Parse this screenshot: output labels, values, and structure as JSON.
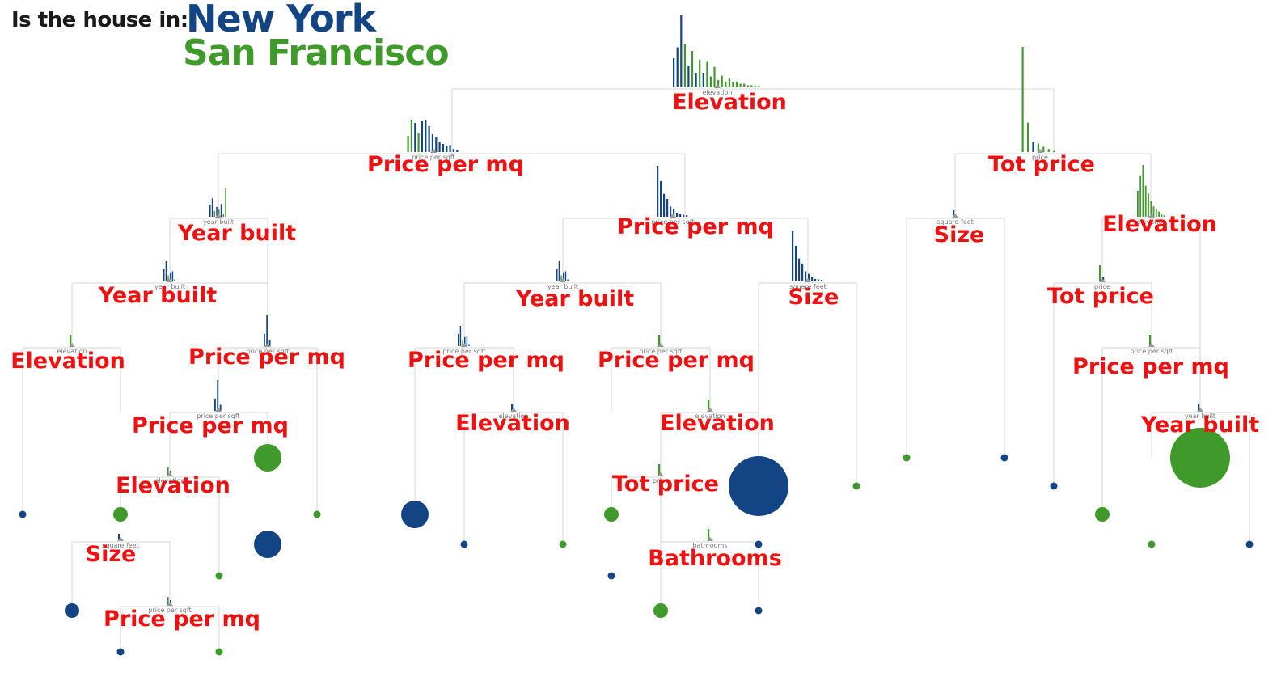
{
  "header": {
    "question": "Is the house in:",
    "class_a": "New York",
    "class_b": "San Francisco"
  },
  "colors": {
    "new_york": "#134585",
    "san_francisco": "#3f9a2b",
    "split_label": "#ee1111",
    "edge": "#dddddd"
  },
  "tree": {
    "nodes": [
      {
        "id": "root",
        "label": "Elevation",
        "feature": "elevation",
        "hist": "mixed-wide"
      },
      {
        "id": "n1",
        "label": "Price per mq",
        "feature": "price per sqft",
        "hist": "ny-heavy"
      },
      {
        "id": "n2",
        "label": "Tot price",
        "feature": "price",
        "hist": "sf-spike"
      },
      {
        "id": "n3",
        "label": "Year built",
        "feature": "year built",
        "hist": "sf-few"
      },
      {
        "id": "n4",
        "label": "Price per mq",
        "feature": "price per sqft",
        "hist": "ny-decay"
      },
      {
        "id": "n5",
        "label": "Size",
        "feature": "square feet",
        "hist": "tiny-ny"
      },
      {
        "id": "n6",
        "label": "Elevation",
        "feature": "elevation",
        "hist": "sf-decay"
      },
      {
        "id": "n7",
        "label": "Year built",
        "feature": "year built",
        "hist": "ny-few"
      },
      {
        "id": "n8",
        "label": "Year built",
        "feature": "year built",
        "hist": "ny-few"
      },
      {
        "id": "n9",
        "label": "Size",
        "feature": "square feet",
        "hist": "ny-decay"
      },
      {
        "id": "n10",
        "label": "Tot price",
        "feature": "price",
        "hist": "mixed-few"
      },
      {
        "id": "n11",
        "label": "Elevation",
        "feature": "elevation",
        "hist": "sf-single"
      },
      {
        "id": "n12",
        "label": "Price per mq",
        "feature": "price per sqft",
        "hist": "ny-two"
      },
      {
        "id": "n13",
        "label": "Price per mq",
        "feature": "price per sqft",
        "hist": "ny-few"
      },
      {
        "id": "n14",
        "label": "Price per mq",
        "feature": "price per sqft",
        "hist": "sf-single"
      },
      {
        "id": "n15",
        "label": "Price per mq",
        "feature": "price per sqft",
        "hist": "sf-single"
      },
      {
        "id": "n16",
        "label": "Price per mq",
        "feature": "price per sqft",
        "hist": "ny-two"
      },
      {
        "id": "n17",
        "label": "Elevation",
        "feature": "elevation",
        "hist": "ny-single"
      },
      {
        "id": "n18",
        "label": "Elevation",
        "feature": "elevation",
        "hist": "sf-single"
      },
      {
        "id": "n19",
        "label": "Year built",
        "feature": "year built",
        "hist": "ny-single"
      },
      {
        "id": "n20",
        "label": "Elevation",
        "feature": "elevation",
        "hist": "mixed-two"
      },
      {
        "id": "n21",
        "label": "Tot price",
        "feature": "price",
        "hist": "sf-single"
      },
      {
        "id": "n22",
        "label": "Size",
        "feature": "square feet",
        "hist": "ny-single"
      },
      {
        "id": "n23",
        "label": "Bathrooms",
        "feature": "bathrooms",
        "hist": "sf-single"
      },
      {
        "id": "n24",
        "label": "Price per mq",
        "feature": "price per sqft",
        "hist": "mixed-two"
      }
    ],
    "leaves": [
      {
        "class": "new_york",
        "size": "xs"
      },
      {
        "class": "san_francisco",
        "size": "s"
      },
      {
        "class": "san_francisco",
        "size": "l"
      },
      {
        "class": "new_york",
        "size": "l"
      },
      {
        "class": "san_francisco",
        "size": "xs"
      },
      {
        "class": "new_york",
        "size": "l"
      },
      {
        "class": "new_york",
        "size": "xs"
      },
      {
        "class": "san_francisco",
        "size": "xs"
      },
      {
        "class": "san_francisco",
        "size": "s"
      },
      {
        "class": "new_york",
        "size": "xxl"
      },
      {
        "class": "san_francisco",
        "size": "xs"
      },
      {
        "class": "san_francisco",
        "size": "xs"
      },
      {
        "class": "new_york",
        "size": "xs"
      },
      {
        "class": "new_york",
        "size": "xs"
      },
      {
        "class": "san_francisco",
        "size": "s"
      },
      {
        "class": "san_francisco",
        "size": "xxl"
      },
      {
        "class": "san_francisco",
        "size": "xs"
      },
      {
        "class": "new_york",
        "size": "xs"
      },
      {
        "class": "new_york",
        "size": "s"
      },
      {
        "class": "san_francisco",
        "size": "xs"
      },
      {
        "class": "new_york",
        "size": "xs"
      },
      {
        "class": "san_francisco",
        "size": "xs"
      },
      {
        "class": "new_york",
        "size": "xs"
      },
      {
        "class": "san_francisco",
        "size": "s"
      },
      {
        "class": "new_york",
        "size": "xs"
      },
      {
        "class": "new_york",
        "size": "xs"
      },
      {
        "class": "san_francisco",
        "size": "xs"
      },
      {
        "class": "new_york",
        "size": "s"
      }
    ]
  }
}
